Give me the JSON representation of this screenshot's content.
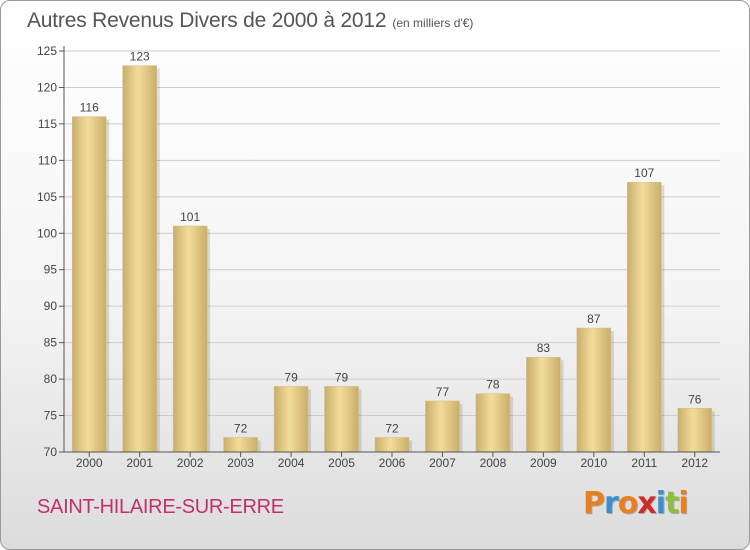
{
  "header": {
    "title": "Autres Revenus Divers de 2000 à 2012",
    "unit": "(en milliers d'€)"
  },
  "footer": {
    "commune": "SAINT-HILAIRE-SUR-ERRE",
    "logo": [
      "P",
      "r",
      "o",
      "x",
      "i",
      "t",
      "i"
    ],
    "logo_colors": [
      "#e8801f",
      "#3a8fd0",
      "#e8801f",
      "#d02a2a",
      "#3a8fd0",
      "#8cbf3c",
      "#e8801f"
    ]
  },
  "colors": {
    "bar_light": "#f3dc9a",
    "bar_dark": "#c9ae6a",
    "grid": "#cccccc",
    "axis": "#555555",
    "commune": "#c0306a"
  },
  "chart_data": {
    "type": "bar",
    "categories": [
      "2000",
      "2001",
      "2002",
      "2003",
      "2004",
      "2005",
      "2006",
      "2007",
      "2008",
      "2009",
      "2010",
      "2011",
      "2012"
    ],
    "values": [
      116,
      123,
      101,
      72,
      79,
      79,
      72,
      77,
      78,
      83,
      87,
      107,
      76
    ],
    "ylim": [
      70,
      125
    ],
    "yticks": [
      70,
      75,
      80,
      85,
      90,
      95,
      100,
      105,
      110,
      115,
      120,
      125
    ],
    "grid": true,
    "show_value_labels": true
  }
}
